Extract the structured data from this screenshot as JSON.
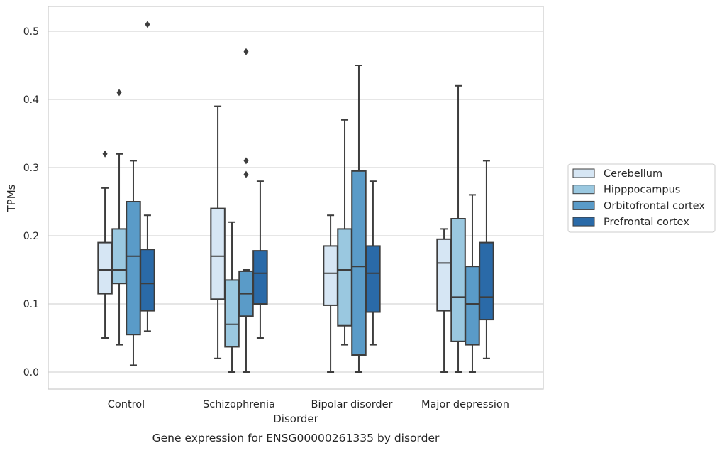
{
  "chart_data": {
    "type": "box",
    "title": "Gene expression for ENSG00000261335 by disorder",
    "xlabel": "Disorder",
    "ylabel": "TPMs",
    "ylim": [
      -0.025,
      0.54
    ],
    "yticks": [
      0.0,
      0.1,
      0.2,
      0.3,
      0.4,
      0.5
    ],
    "ytick_labels": [
      "0.0",
      "0.1",
      "0.2",
      "0.3",
      "0.4",
      "0.5"
    ],
    "grid": "horizontal",
    "legend_position": "right",
    "categories": [
      "Control",
      "Schizophrenia",
      "Bipolar disorder",
      "Major depression"
    ],
    "series": [
      {
        "name": "Cerebellum",
        "color": "#d6e6f4",
        "boxes": [
          {
            "whislo": 0.05,
            "q1": 0.115,
            "med": 0.15,
            "q3": 0.19,
            "whishi": 0.27,
            "fliers": [
              0.32
            ]
          },
          {
            "whislo": 0.02,
            "q1": 0.107,
            "med": 0.17,
            "q3": 0.24,
            "whishi": 0.39,
            "fliers": []
          },
          {
            "whislo": 0.0,
            "q1": 0.098,
            "med": 0.145,
            "q3": 0.185,
            "whishi": 0.23,
            "fliers": []
          },
          {
            "whislo": 0.0,
            "q1": 0.09,
            "med": 0.16,
            "q3": 0.195,
            "whishi": 0.21,
            "fliers": []
          }
        ]
      },
      {
        "name": "Hipppocampus",
        "color": "#9ac8e0",
        "boxes": [
          {
            "whislo": 0.04,
            "q1": 0.13,
            "med": 0.15,
            "q3": 0.21,
            "whishi": 0.32,
            "fliers": [
              0.41
            ]
          },
          {
            "whislo": 0.0,
            "q1": 0.037,
            "med": 0.07,
            "q3": 0.135,
            "whishi": 0.22,
            "fliers": []
          },
          {
            "whislo": 0.04,
            "q1": 0.068,
            "med": 0.15,
            "q3": 0.21,
            "whishi": 0.37,
            "fliers": []
          },
          {
            "whislo": 0.0,
            "q1": 0.045,
            "med": 0.11,
            "q3": 0.225,
            "whishi": 0.42,
            "fliers": []
          }
        ]
      },
      {
        "name": "Orbitofrontal cortex",
        "color": "#5a9bc8",
        "boxes": [
          {
            "whislo": 0.01,
            "q1": 0.055,
            "med": 0.17,
            "q3": 0.25,
            "whishi": 0.31,
            "fliers": []
          },
          {
            "whislo": 0.0,
            "q1": 0.082,
            "med": 0.115,
            "q3": 0.148,
            "whishi": 0.15,
            "fliers": [
              0.29,
              0.31,
              0.47
            ]
          },
          {
            "whislo": 0.0,
            "q1": 0.025,
            "med": 0.155,
            "q3": 0.295,
            "whishi": 0.45,
            "fliers": []
          },
          {
            "whislo": 0.0,
            "q1": 0.04,
            "med": 0.1,
            "q3": 0.155,
            "whishi": 0.26,
            "fliers": []
          }
        ]
      },
      {
        "name": "Prefrontal cortex",
        "color": "#2a6aa8",
        "boxes": [
          {
            "whislo": 0.06,
            "q1": 0.09,
            "med": 0.13,
            "q3": 0.18,
            "whishi": 0.23,
            "fliers": [
              0.51
            ]
          },
          {
            "whislo": 0.05,
            "q1": 0.1,
            "med": 0.145,
            "q3": 0.178,
            "whishi": 0.28,
            "fliers": []
          },
          {
            "whislo": 0.04,
            "q1": 0.088,
            "med": 0.145,
            "q3": 0.185,
            "whishi": 0.28,
            "fliers": []
          },
          {
            "whislo": 0.02,
            "q1": 0.077,
            "med": 0.11,
            "q3": 0.19,
            "whishi": 0.31,
            "fliers": []
          }
        ]
      }
    ]
  }
}
